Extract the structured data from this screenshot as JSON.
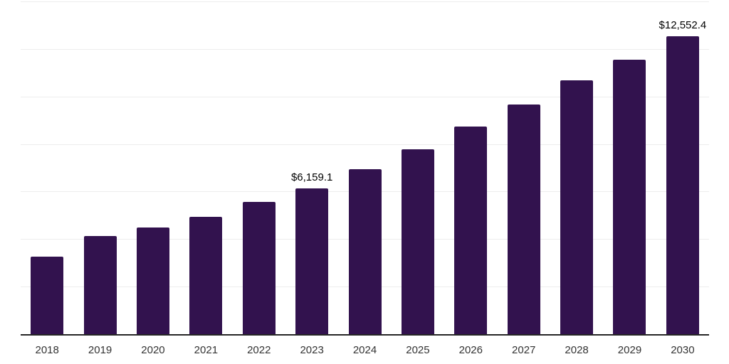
{
  "chart_data": {
    "type": "bar",
    "title": "",
    "xlabel": "",
    "ylabel": "",
    "categories": [
      "2018",
      "2019",
      "2020",
      "2021",
      "2022",
      "2023",
      "2024",
      "2025",
      "2026",
      "2027",
      "2028",
      "2029",
      "2030"
    ],
    "values": [
      3300,
      4160,
      4530,
      4980,
      5600,
      6159.1,
      6960,
      7820,
      8760,
      9680,
      10700,
      11590,
      12552.4
    ],
    "value_labels": [
      null,
      null,
      null,
      null,
      null,
      "$6,159.1",
      null,
      null,
      null,
      null,
      null,
      null,
      "$12,552.4"
    ],
    "ylim": [
      0,
      14000
    ],
    "gridline_step": 2000,
    "grid": "horizontal-only",
    "legend_position": "none",
    "y_tick_labels_visible": false,
    "colors": {
      "bar": "#32124E",
      "axis_line": "#262626",
      "gridline": "#ededed",
      "value_label": "#000000",
      "tick_label": "#333333",
      "background": "#ffffff"
    }
  }
}
